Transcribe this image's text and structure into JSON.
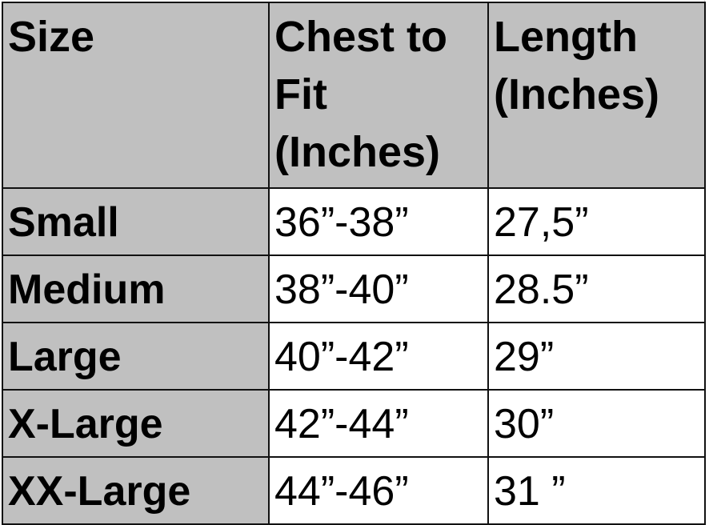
{
  "table": {
    "headers": [
      "Size",
      "Chest to Fit (Inches)",
      "Length (Inches)"
    ],
    "rows": [
      [
        "Small",
        "36”-38”",
        "27,5”"
      ],
      [
        "Medium",
        "38”-40”",
        "28.5”"
      ],
      [
        "Large",
        "40”-42”",
        "29”"
      ],
      [
        "X-Large",
        "42”-44”",
        "30”"
      ],
      [
        "XX-Large",
        "44”-46”",
        "31 ”"
      ]
    ]
  },
  "colors": {
    "header_bg": "#c0c0c0",
    "border": "#111111"
  }
}
